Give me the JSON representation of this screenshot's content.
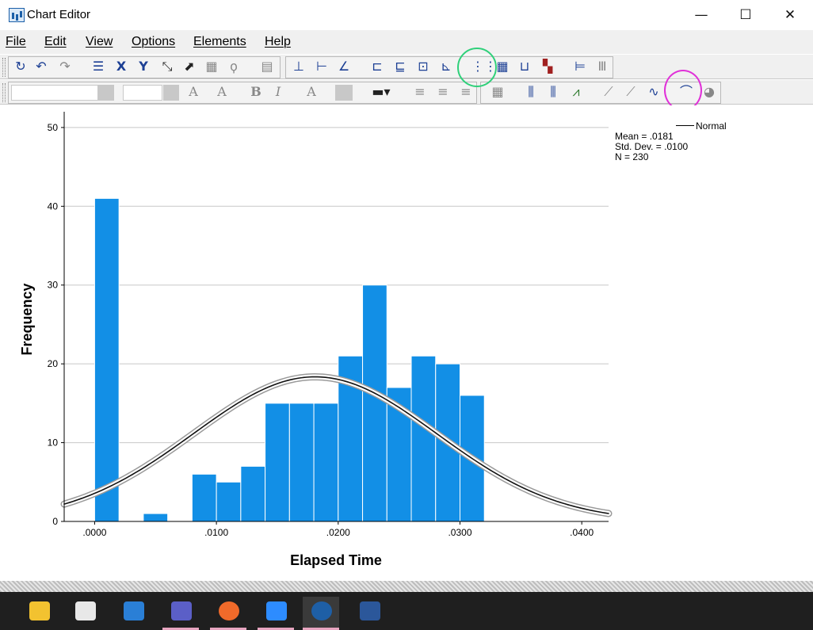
{
  "window": {
    "title": "Chart Editor",
    "minimize_glyph": "—",
    "maximize_glyph": "☐",
    "close_glyph": "✕"
  },
  "menu": [
    "File",
    "Edit",
    "View",
    "Options",
    "Elements",
    "Help"
  ],
  "toolbar_row1": [
    "refresh-icon",
    "undo-icon",
    "redo-icon",
    "properties-icon",
    "x-axis-icon",
    "y-axis-icon",
    "rescale-icon",
    "resize-icon",
    "transpose-icon",
    "lasso-icon",
    "data-window-icon",
    "axis-y-icon",
    "axis-x-icon",
    "axis-diag-icon",
    "chart-title-icon",
    "subtitle-icon",
    "footnote-icon",
    "annotation-icon",
    "grid-lines-icon",
    "data-label-grid-icon",
    "x-ref-line-icon",
    "legend-ab-icon",
    "bar-chart-icon",
    "bar-chart-2-icon"
  ],
  "toolbar_row2": [
    "font-size-up-icon",
    "font-size-down-icon",
    "bold-icon",
    "italic-icon",
    "text-style-icon",
    "fill-color-icon",
    "line-style-icon",
    "align-left-icon",
    "align-center-icon",
    "align-right-icon",
    "data-grid-icon",
    "bar-element-icon",
    "bar-element-2-icon",
    "fit-line-icon",
    "scatter-icon",
    "scatter-2-icon",
    "line-icon",
    "distribution-curve-icon",
    "pie-icon"
  ],
  "toolbar_labels": {
    "font_a_up": "A",
    "font_a_down": "A",
    "bold": "B",
    "italic": "I",
    "text_a": "A"
  },
  "chart": {
    "legend_label": "Normal",
    "stats": [
      "Mean = .0181",
      "Std. Dev. = .0100",
      "N = 230"
    ]
  },
  "chart_data": {
    "type": "bar",
    "xlabel": "Elapsed Time",
    "ylabel": "Frequency",
    "ylim": [
      0,
      52
    ],
    "yticks": [
      0,
      10,
      20,
      30,
      40,
      50
    ],
    "xtick_labels": [
      ".0000",
      ".0100",
      ".0200",
      ".0300",
      ".0400"
    ],
    "xtick_values": [
      0.0,
      0.01,
      0.02,
      0.03,
      0.04
    ],
    "xlim": [
      -0.0025,
      0.0422
    ],
    "bin_width": 0.002,
    "bins": [
      {
        "start": 0.0,
        "count": 41
      },
      {
        "start": 0.002,
        "count": 0
      },
      {
        "start": 0.004,
        "count": 1
      },
      {
        "start": 0.006,
        "count": 0
      },
      {
        "start": 0.008,
        "count": 6
      },
      {
        "start": 0.01,
        "count": 5
      },
      {
        "start": 0.012,
        "count": 7
      },
      {
        "start": 0.014,
        "count": 15
      },
      {
        "start": 0.016,
        "count": 15
      },
      {
        "start": 0.018,
        "count": 15
      },
      {
        "start": 0.02,
        "count": 21
      },
      {
        "start": 0.022,
        "count": 30
      },
      {
        "start": 0.024,
        "count": 17
      },
      {
        "start": 0.026,
        "count": 21
      },
      {
        "start": 0.028,
        "count": 20
      },
      {
        "start": 0.03,
        "count": 16
      }
    ],
    "normal_curve": {
      "mean": 0.0181,
      "sd": 0.01,
      "n": 230
    },
    "bar_color": "#128fe6",
    "grid": true,
    "legend_position": "top-right"
  },
  "taskbar": [
    "file-explorer-icon",
    "store-icon",
    "mail-icon",
    "teams-icon",
    "firefox-icon",
    "zoom-icon",
    "spss-sigma-icon",
    "word-icon"
  ]
}
